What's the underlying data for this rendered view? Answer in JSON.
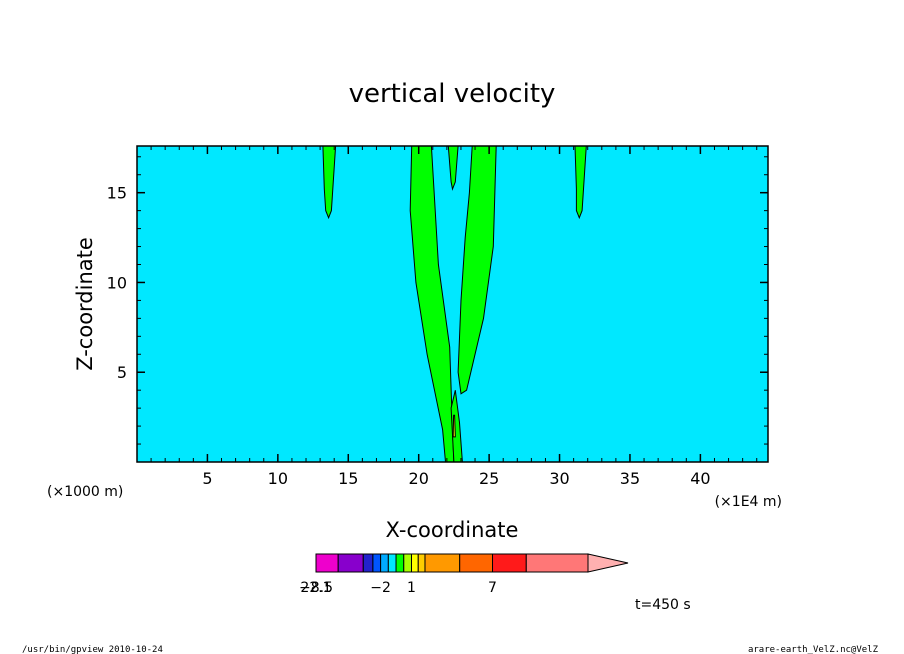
{
  "chart_data": {
    "type": "heatmap",
    "title": "vertical velocity",
    "xlabel": "X-coordinate",
    "ylabel": "Z-coordinate",
    "x_unit_left": "(×1000 m)",
    "x_unit_right": "(×1E4 m)",
    "xlim": [
      0,
      44.8
    ],
    "ylim": [
      0,
      17.6
    ],
    "x_ticks": [
      5,
      10,
      15,
      20,
      25,
      30,
      35,
      40
    ],
    "x_tick_labels": [
      "5",
      "10",
      "15",
      "20",
      "25",
      "30",
      "35",
      "40"
    ],
    "y_ticks": [
      5,
      10,
      15
    ],
    "y_tick_labels": [
      "5",
      "10",
      "15"
    ],
    "background_color": "#00e8ff",
    "contour_regions": [
      {
        "fill": "#00ff00",
        "outline": [
          [
            13.2,
            17.6
          ],
          [
            14.1,
            17.6
          ],
          [
            13.9,
            15.2
          ],
          [
            13.8,
            14.0
          ],
          [
            13.6,
            13.6
          ],
          [
            13.4,
            14.0
          ],
          [
            13.3,
            15.2
          ]
        ]
      },
      {
        "fill": "#00ff00",
        "outline": [
          [
            19.5,
            17.6
          ],
          [
            20.9,
            17.6
          ],
          [
            21.4,
            11.0
          ],
          [
            22.2,
            6.4
          ],
          [
            22.4,
            1.8
          ],
          [
            22.5,
            0
          ],
          [
            21.9,
            0
          ],
          [
            21.7,
            1.8
          ],
          [
            20.6,
            6.0
          ],
          [
            19.8,
            10.0
          ],
          [
            19.4,
            14.0
          ]
        ]
      },
      {
        "fill": "#00ff00",
        "outline": [
          [
            22.1,
            17.6
          ],
          [
            22.8,
            17.6
          ],
          [
            22.6,
            15.6
          ],
          [
            22.4,
            15.2
          ],
          [
            22.3,
            15.6
          ]
        ]
      },
      {
        "fill": "#00ff00",
        "outline": [
          [
            23.8,
            17.6
          ],
          [
            25.5,
            17.6
          ],
          [
            25.3,
            12.0
          ],
          [
            24.6,
            8.0
          ],
          [
            23.4,
            4.0
          ],
          [
            23.0,
            3.8
          ],
          [
            22.8,
            5.0
          ],
          [
            23.0,
            9.0
          ],
          [
            23.3,
            12.5
          ],
          [
            23.6,
            15.0
          ]
        ]
      },
      {
        "fill": "#00ff00",
        "outline": [
          [
            22.5,
            0
          ],
          [
            23.1,
            0
          ],
          [
            22.9,
            2.2
          ],
          [
            22.6,
            4.0
          ],
          [
            22.3,
            3.0
          ]
        ]
      },
      {
        "fill": "#ffff00",
        "outline": [
          [
            22.45,
            1.4
          ],
          [
            22.6,
            1.4
          ],
          [
            22.55,
            2.6
          ],
          [
            22.48,
            2.6
          ]
        ]
      },
      {
        "fill": "#00ff00",
        "outline": [
          [
            31.1,
            17.6
          ],
          [
            31.9,
            17.6
          ],
          [
            31.7,
            15.2
          ],
          [
            31.6,
            14.0
          ],
          [
            31.4,
            13.6
          ],
          [
            31.2,
            14.0
          ],
          [
            31.2,
            15.2
          ]
        ]
      }
    ],
    "colorbar": {
      "levels": [
        -8.5,
        -5.5,
        -3.5,
        -2.8,
        -2,
        -1.3,
        -0.7,
        0,
        1,
        1.7,
        2.5,
        4.5,
        7,
        9.5,
        13,
        22.1
      ],
      "colors": [
        "#ee00cc",
        "#8800cc",
        "#2222cc",
        "#0055ff",
        "#00aaff",
        "#00e8ff",
        "#00ff00",
        "#aaff00",
        "#ffff00",
        "#ffcc00",
        "#ff9900",
        "#ff6600",
        "#ff1a1a",
        "#ff7777",
        "#ffb0b0"
      ],
      "labels": [
        {
          "value": -8.5,
          "text": "−8.5"
        },
        {
          "value": -2,
          "text": "−2"
        },
        {
          "value": 1,
          "text": "1"
        },
        {
          "value": 7,
          "text": "7"
        },
        {
          "value": 22.1,
          "text": "22.1"
        }
      ]
    },
    "time_label": "t=450 s"
  },
  "footer": {
    "left": "/usr/bin/gpview 2010-10-24",
    "right": "arare-earth_VelZ.nc@VelZ"
  }
}
